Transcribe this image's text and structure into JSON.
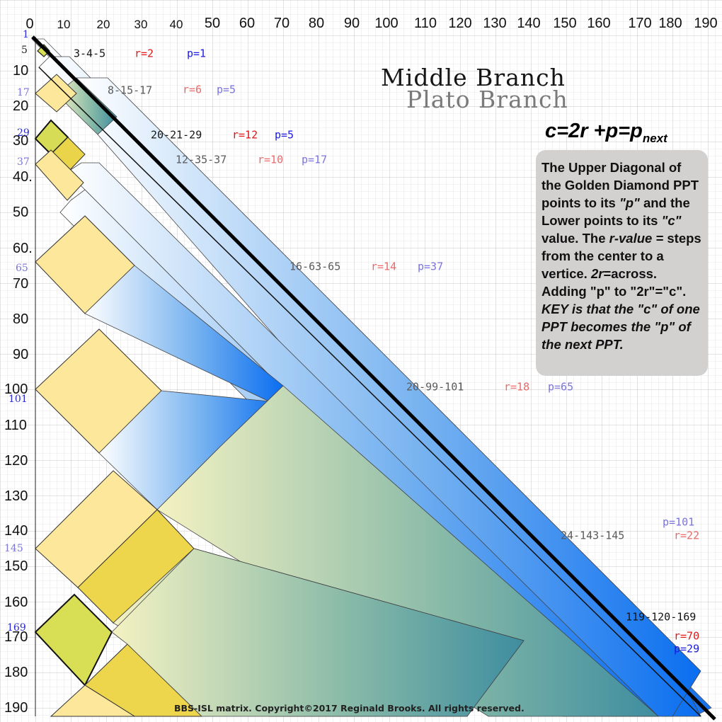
{
  "axis": {
    "x": [
      "0",
      "10",
      "20",
      "30",
      "40",
      "50",
      "60",
      "70",
      "80",
      "90",
      "100",
      "110",
      "120",
      "130",
      "140",
      "150",
      "160",
      "170",
      "180",
      "190"
    ],
    "y": [
      "10",
      "20",
      "30",
      "40.",
      "50",
      "60.",
      "70",
      "80",
      "90",
      "100",
      "110",
      "120",
      "130",
      "140",
      "150",
      "160",
      "170",
      "180",
      "190"
    ]
  },
  "markers": [
    "1",
    "5",
    "17",
    "29",
    "37",
    "65",
    "101",
    "145",
    "169"
  ],
  "triples": [
    {
      "ppt": "3-4-5",
      "r": "r=2",
      "p": "p=1"
    },
    {
      "ppt": "8-15-17",
      "r": "r=6",
      "p": "p=5"
    },
    {
      "ppt": "20-21-29",
      "r": "r=12",
      "p": "p=5"
    },
    {
      "ppt": "12-35-37",
      "r": "r=10",
      "p": "p=17"
    },
    {
      "ppt": "16-63-65",
      "r": "r=14",
      "p": "p=37"
    },
    {
      "ppt": "20-99-101",
      "r": "r=18",
      "p": "p=65"
    },
    {
      "ppt": "24-143-145",
      "r": "r=22",
      "p": "p=101"
    },
    {
      "ppt": "119-120-169",
      "r": "r=70",
      "p": "p=29"
    }
  ],
  "titles": {
    "main": "Middle Branch",
    "sub": "Plato Branch"
  },
  "formula": {
    "main": "c=2r +p=p",
    "sub": "next"
  },
  "info": {
    "t1": "The Upper Diagonal of the Golden Diamond PPT points to its ",
    "t2": "\"p\"",
    "t3": " and the Lower points to its ",
    "t4": "\"c\"",
    "t5": " value. The ",
    "t6": "r-value =",
    "t7": " steps from the center to a vertice. ",
    "t8": "2r",
    "t9": "=across. Adding \"p\" to \"2r\"=\"c\". ",
    "t10": "KEY is that the \"c\" of one PPT becomes the \"p\" of the next PPT."
  },
  "copyright": "BBS-ISL matrix. Copyright©2017 Reginald Brooks. All rights reserved."
}
